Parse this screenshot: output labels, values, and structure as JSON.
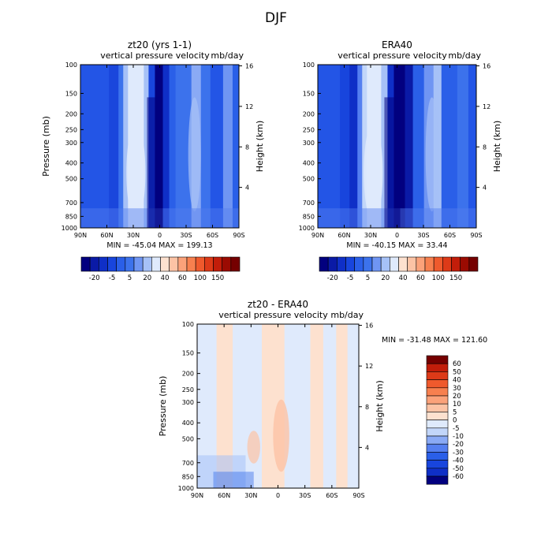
{
  "figure": {
    "title": "DJF"
  },
  "colors": {
    "blues": [
      "#02007f",
      "#0a1aa6",
      "#0f2fc7",
      "#1845dd",
      "#2a5fe8",
      "#3c72ec",
      "#557ff0",
      "#6f95f3",
      "#8aaaf5",
      "#a6c1f7",
      "#c2d6f9",
      "#dfeafc"
    ],
    "reds": [
      "#fde1cf",
      "#fcc3a5",
      "#fba27a",
      "#f7804f",
      "#ef5a2d",
      "#dd3a18",
      "#c21d0a",
      "#9b0b02",
      "#750000"
    ]
  },
  "chart_data": [
    {
      "id": "panel-zt20",
      "type": "heatmap",
      "title": "zt20 (yrs 1-1)",
      "subtitle": "vertical pressure velocity",
      "units": "mb/day",
      "xlabel": "",
      "ylabel": "Pressure (mb)",
      "y2label": "Height (km)",
      "xticks": [
        "90N",
        "60N",
        "30N",
        "0",
        "30S",
        "60S",
        "90S"
      ],
      "yticks": [
        "100",
        "150",
        "200",
        "250",
        "300",
        "400",
        "500",
        "700",
        "850",
        "1000"
      ],
      "y2ticks": [
        "16",
        "12",
        "8",
        "4"
      ],
      "y_scale": "log",
      "stats": "MIN = -45.04   MAX = 199.13",
      "colorbar": {
        "labels": [
          "-20",
          "-5",
          "5",
          "20",
          "40",
          "60",
          "100",
          "150"
        ]
      }
    },
    {
      "id": "panel-era40",
      "type": "heatmap",
      "title": "ERA40",
      "subtitle": "vertical pressure velocity",
      "units": "mb/day",
      "xlabel": "",
      "ylabel": "",
      "y2label": "Height (km)",
      "xticks": [
        "90N",
        "60N",
        "30N",
        "0",
        "30S",
        "60S",
        "90S"
      ],
      "yticks": [
        "100",
        "150",
        "200",
        "250",
        "300",
        "400",
        "500",
        "700",
        "850",
        "1000"
      ],
      "y2ticks": [
        "16",
        "12",
        "8",
        "4"
      ],
      "y_scale": "log",
      "stats": "MIN = -40.15   MAX =  33.44",
      "colorbar": {
        "labels": [
          "-20",
          "-5",
          "5",
          "20",
          "40",
          "60",
          "100",
          "150"
        ]
      }
    },
    {
      "id": "panel-diff",
      "type": "heatmap",
      "title": "zt20 - ERA40",
      "subtitle": "vertical pressure velocity",
      "units": "mb/day",
      "xlabel": "",
      "ylabel": "Pressure (mb)",
      "y2label": "Height (km)",
      "xticks": [
        "90N",
        "60N",
        "30N",
        "0",
        "30S",
        "60S",
        "90S"
      ],
      "yticks": [
        "100",
        "150",
        "200",
        "250",
        "300",
        "400",
        "500",
        "700",
        "850",
        "1000"
      ],
      "y2ticks": [
        "16",
        "12",
        "8",
        "4"
      ],
      "y_scale": "log",
      "stats": "MIN = -31.48   MAX = 121.60",
      "colorbar": {
        "labels": [
          "60",
          "50",
          "40",
          "30",
          "20",
          "10",
          "5",
          "0",
          "-5",
          "-10",
          "-20",
          "-30",
          "-40",
          "-50",
          "-60"
        ]
      }
    }
  ]
}
